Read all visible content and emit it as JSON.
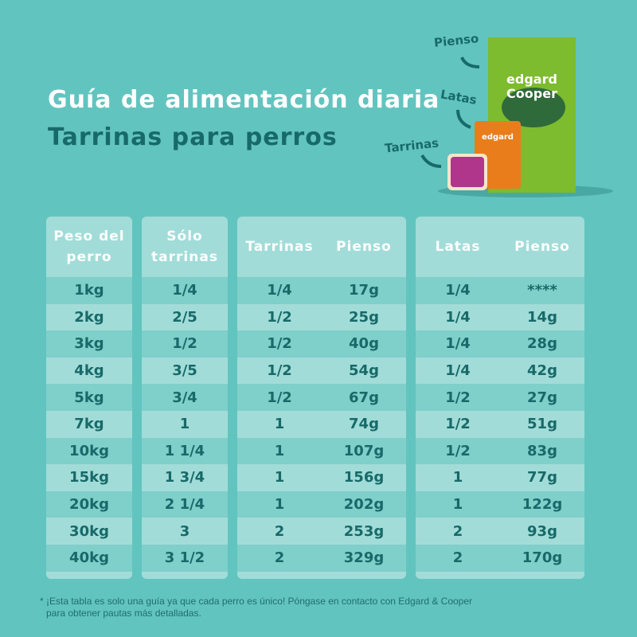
{
  "title": "Guía de alimentación diaria",
  "subtitle": "Tarrinas para perros",
  "product_labels": {
    "pienso": "Pienso",
    "latas": "Latas",
    "tarrinas": "Tarrinas"
  },
  "product_brand": "Edgard Cooper",
  "tables": {
    "peso": {
      "header": [
        "Peso del",
        "perro"
      ],
      "rows": [
        "1kg",
        "2kg",
        "3kg",
        "4kg",
        "5kg",
        "7kg",
        "10kg",
        "15kg",
        "20kg",
        "30kg",
        "40kg"
      ]
    },
    "solo": {
      "header": [
        "Sólo",
        "tarrinas"
      ],
      "rows": [
        "1/4",
        "2/5",
        "1/2",
        "3/5",
        "3/4",
        "1",
        "1 1/4",
        "1 3/4",
        "2 1/4",
        "3",
        "3 1/2"
      ]
    },
    "tarrinas_pienso": {
      "headers": [
        "Tarrinas",
        "Pienso"
      ],
      "rows": [
        [
          "1/4",
          "17g"
        ],
        [
          "1/2",
          "25g"
        ],
        [
          "1/2",
          "40g"
        ],
        [
          "1/2",
          "54g"
        ],
        [
          "1/2",
          "67g"
        ],
        [
          "1",
          "74g"
        ],
        [
          "1",
          "107g"
        ],
        [
          "1",
          "156g"
        ],
        [
          "1",
          "202g"
        ],
        [
          "2",
          "253g"
        ],
        [
          "2",
          "329g"
        ]
      ]
    },
    "latas_pienso": {
      "headers": [
        "Latas",
        "Pienso"
      ],
      "rows": [
        [
          "1/4",
          "****"
        ],
        [
          "1/4",
          "14g"
        ],
        [
          "1/4",
          "28g"
        ],
        [
          "1/4",
          "42g"
        ],
        [
          "1/2",
          "27g"
        ],
        [
          "1/2",
          "51g"
        ],
        [
          "1/2",
          "83g"
        ],
        [
          "1",
          "77g"
        ],
        [
          "1",
          "122g"
        ],
        [
          "2",
          "93g"
        ],
        [
          "2",
          "170g"
        ]
      ]
    }
  },
  "footnote": [
    "* ¡Esta tabla es solo una guía ya que cada perro es único! Póngase en contacto con Edgard & Cooper",
    "para obtener pautas más detalladas."
  ],
  "colors": {
    "background": "#62c4bf",
    "card": "#a2dcd8",
    "row_alt": "#7fcfca",
    "text": "#176a69"
  }
}
